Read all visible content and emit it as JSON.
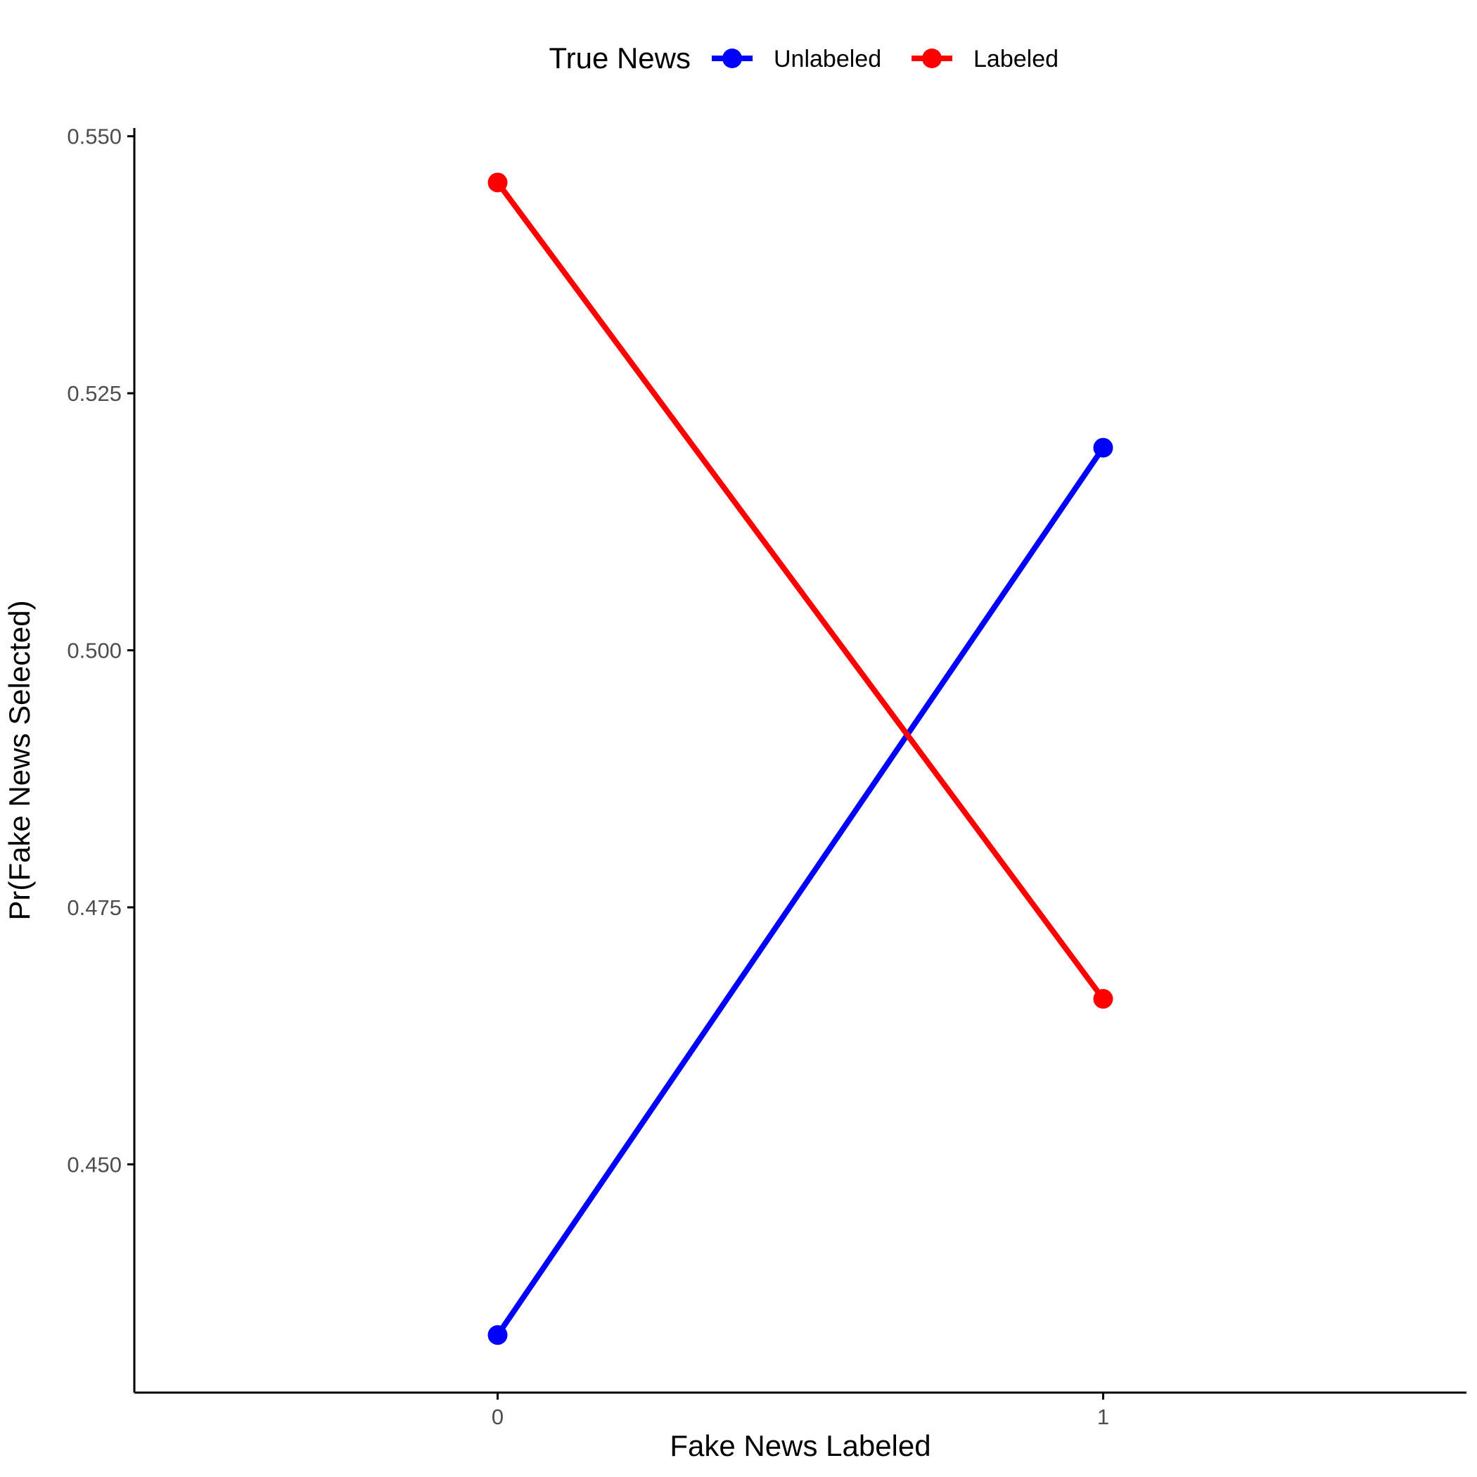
{
  "chart_data": {
    "type": "line",
    "title": "",
    "xlabel": "Fake News Labeled",
    "ylabel": "Pr(Fake News Selected)",
    "x": [
      0,
      1
    ],
    "x_tick_labels": [
      "0",
      "1"
    ],
    "xlim": [
      -0.6,
      1.6
    ],
    "y_ticks": [
      0.45,
      0.475,
      0.5,
      0.525,
      0.55
    ],
    "y_tick_labels": [
      "0.450",
      "0.475",
      "0.500",
      "0.525",
      "0.550"
    ],
    "ylim": [
      0.4278,
      0.5508
    ],
    "grid": false,
    "legend": {
      "title": "True News",
      "position": "top"
    },
    "series": [
      {
        "name": "Unlabeled",
        "color": "#0000ff",
        "values": [
          0.4334,
          0.5197
        ]
      },
      {
        "name": "Labeled",
        "color": "#ff0000",
        "values": [
          0.5455,
          0.4661
        ]
      }
    ]
  }
}
